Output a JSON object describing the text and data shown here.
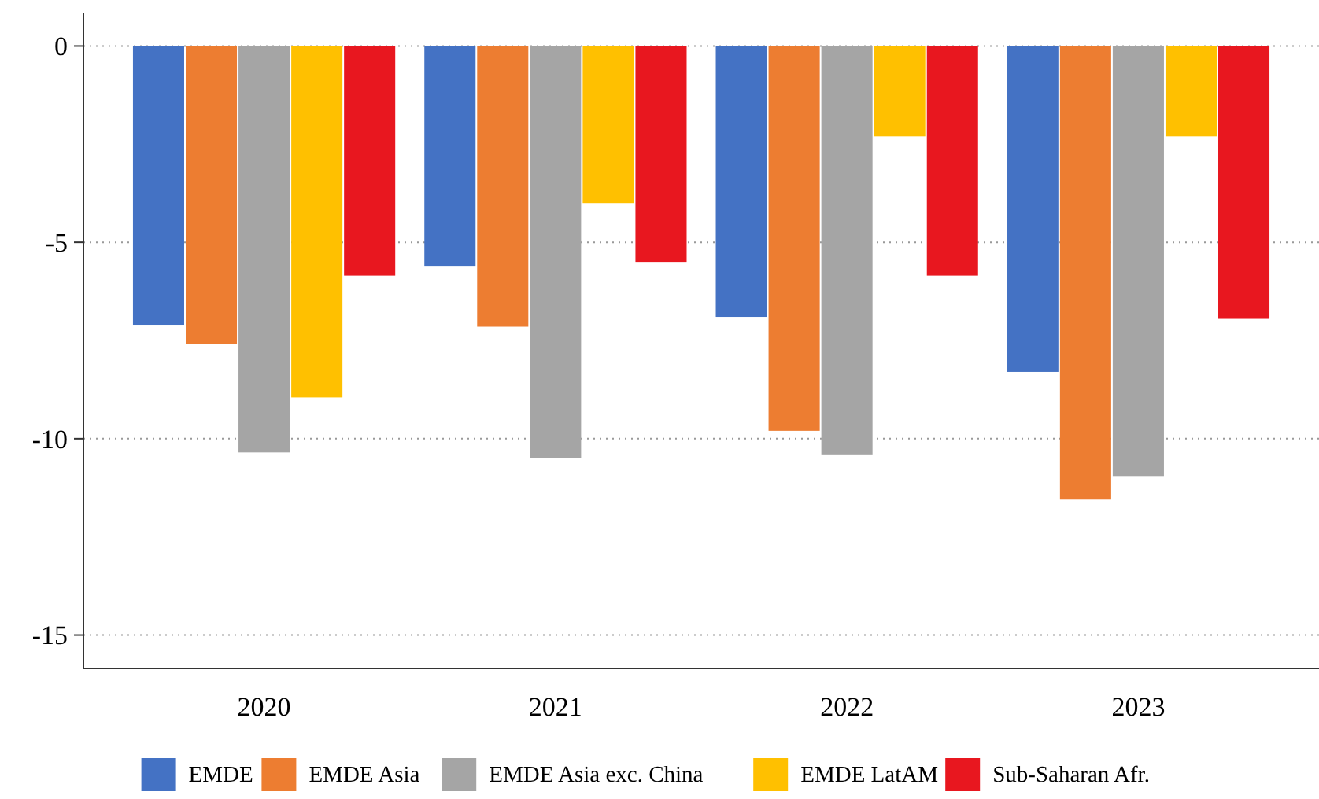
{
  "chart_data": {
    "type": "bar",
    "categories": [
      "2020",
      "2021",
      "2022",
      "2023"
    ],
    "series": [
      {
        "name": "EMDE",
        "color": "#4472c4",
        "values": [
          -7.1,
          -5.6,
          -6.9,
          -8.3
        ]
      },
      {
        "name": "EMDE Asia",
        "color": "#ed7d31",
        "values": [
          -7.6,
          -7.15,
          -9.8,
          -11.55
        ]
      },
      {
        "name": "EMDE Asia exc. China",
        "color": "#a5a5a5",
        "values": [
          -10.35,
          -10.5,
          -10.4,
          -10.95
        ]
      },
      {
        "name": "EMDE LatAM",
        "color": "#ffc000",
        "values": [
          -8.95,
          -4.0,
          -2.3,
          -2.3
        ]
      },
      {
        "name": "Sub-Saharan Afr.",
        "color": "#e8171f",
        "values": [
          -5.85,
          -5.5,
          -5.85,
          -6.95
        ]
      }
    ],
    "ylim": [
      -15.85,
      0.85
    ],
    "yticks": [
      {
        "value": 0,
        "label": "0"
      },
      {
        "value": -5,
        "label": "-5"
      },
      {
        "value": -10,
        "label": "-10"
      },
      {
        "value": -15,
        "label": "-15"
      }
    ],
    "grid": "y",
    "legend": "bottom"
  }
}
